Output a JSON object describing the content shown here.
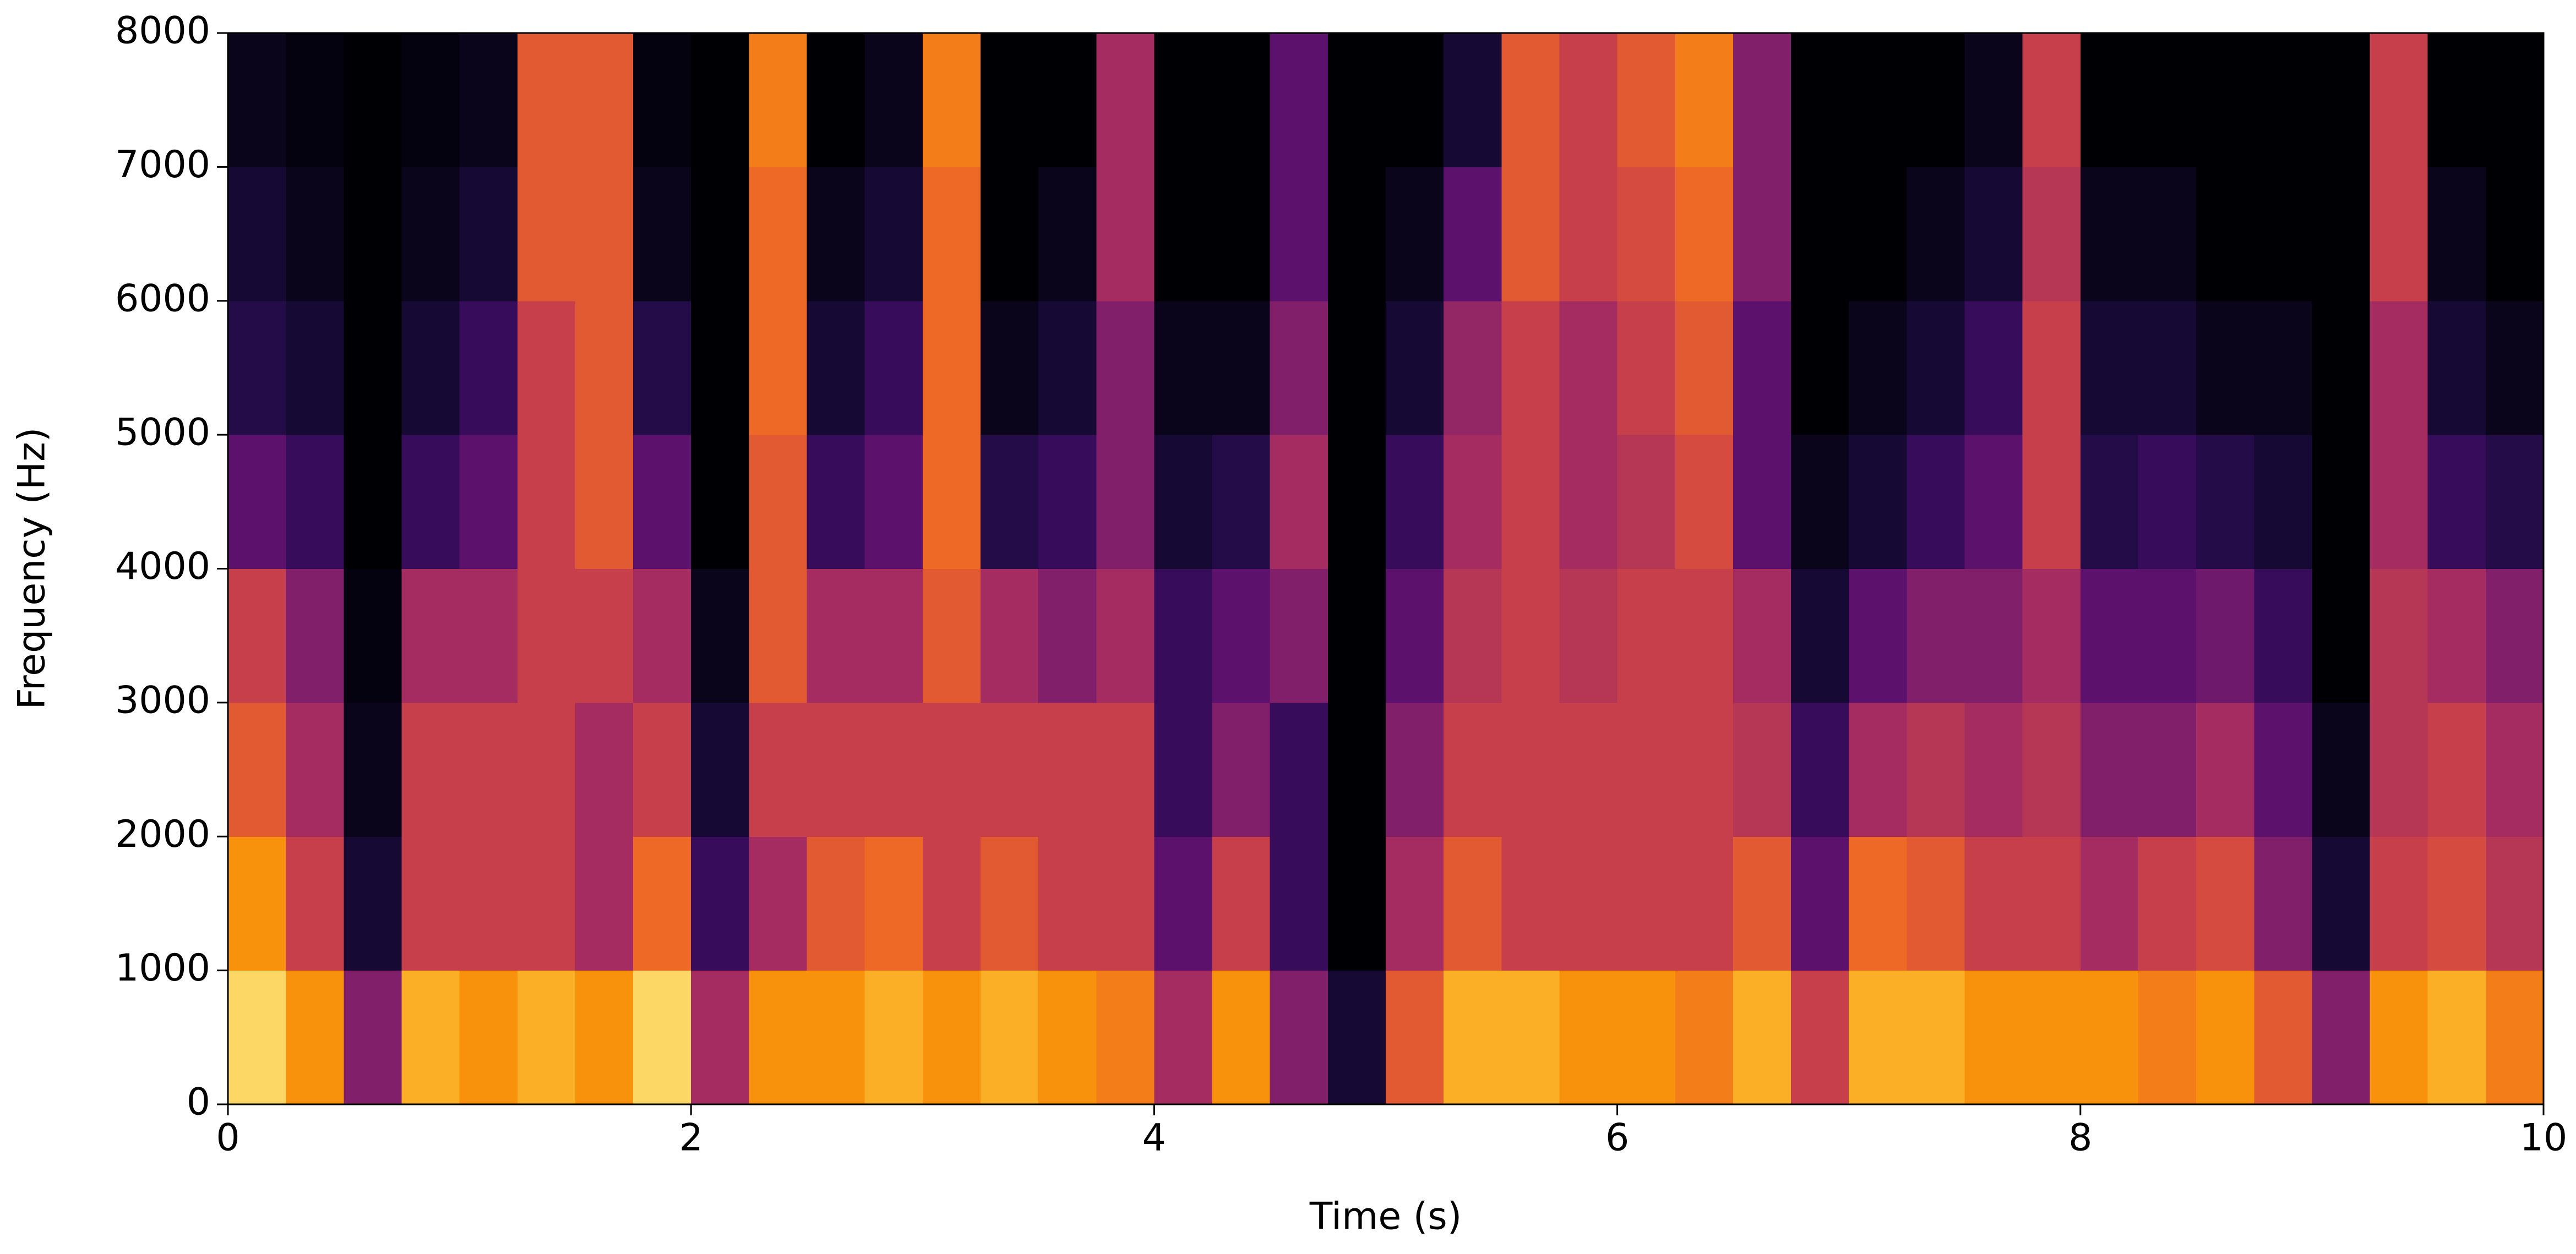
{
  "chart_data": {
    "type": "spectrogram",
    "colormap": "inferno",
    "xlabel": "Time (s)",
    "ylabel": "Frequency (Hz)",
    "xlim": [
      0,
      10
    ],
    "ylim": [
      0,
      8000
    ],
    "xticks": [
      0,
      2,
      4,
      6,
      8,
      10
    ],
    "yticks": [
      0,
      1000,
      2000,
      3000,
      4000,
      5000,
      6000,
      7000,
      8000
    ],
    "xbins": [
      0,
      0.25,
      0.5,
      0.75,
      1,
      1.25,
      1.5,
      1.75,
      2,
      2.25,
      2.5,
      2.75,
      3,
      3.25,
      3.5,
      3.75,
      4,
      4.25,
      4.5,
      4.75,
      5,
      5.25,
      5.5,
      5.75,
      6,
      6.25,
      6.5,
      6.75,
      7,
      7.25,
      7.5,
      7.75,
      8,
      8.25,
      8.5,
      8.75,
      9,
      9.25,
      9.5,
      9.75,
      10
    ],
    "ybins": [
      0,
      1000,
      2000,
      3000,
      4000,
      5000,
      6000,
      7000,
      8000
    ],
    "values": [
      [
        0.95,
        0.85,
        0.7,
        0.6,
        0.3,
        0.15,
        0.1,
        0.05
      ],
      [
        0.85,
        0.6,
        0.5,
        0.4,
        0.2,
        0.1,
        0.05,
        0.02
      ],
      [
        0.4,
        0.1,
        0.05,
        0.02,
        0,
        0,
        0,
        0
      ],
      [
        0.9,
        0.6,
        0.6,
        0.5,
        0.2,
        0.1,
        0.05,
        0.02
      ],
      [
        0.85,
        0.6,
        0.6,
        0.5,
        0.3,
        0.2,
        0.1,
        0.05
      ],
      [
        0.9,
        0.6,
        0.6,
        0.6,
        0.6,
        0.6,
        0.7,
        0.7
      ],
      [
        0.85,
        0.5,
        0.5,
        0.6,
        0.7,
        0.7,
        0.7,
        0.7
      ],
      [
        0.95,
        0.75,
        0.6,
        0.5,
        0.3,
        0.15,
        0.05,
        0.02
      ],
      [
        0.5,
        0.2,
        0.1,
        0.05,
        0,
        0,
        0,
        0
      ],
      [
        0.85,
        0.5,
        0.6,
        0.7,
        0.7,
        0.75,
        0.75,
        0.8
      ],
      [
        0.85,
        0.7,
        0.6,
        0.5,
        0.2,
        0.1,
        0.05,
        0
      ],
      [
        0.9,
        0.75,
        0.6,
        0.5,
        0.3,
        0.2,
        0.1,
        0.05
      ],
      [
        0.85,
        0.6,
        0.6,
        0.7,
        0.75,
        0.75,
        0.75,
        0.8
      ],
      [
        0.9,
        0.7,
        0.6,
        0.5,
        0.15,
        0.05,
        0,
        0
      ],
      [
        0.85,
        0.6,
        0.6,
        0.4,
        0.2,
        0.1,
        0.05,
        0
      ],
      [
        0.8,
        0.6,
        0.6,
        0.5,
        0.4,
        0.4,
        0.5,
        0.5
      ],
      [
        0.5,
        0.3,
        0.2,
        0.2,
        0.1,
        0.05,
        0,
        0
      ],
      [
        0.85,
        0.6,
        0.4,
        0.3,
        0.15,
        0.05,
        0,
        0
      ],
      [
        0.4,
        0.2,
        0.2,
        0.4,
        0.5,
        0.4,
        0.3,
        0.3
      ],
      [
        0.1,
        0,
        0,
        0,
        0,
        0,
        0,
        0
      ],
      [
        0.7,
        0.5,
        0.4,
        0.3,
        0.2,
        0.1,
        0.05,
        0
      ],
      [
        0.9,
        0.7,
        0.6,
        0.55,
        0.5,
        0.45,
        0.3,
        0.1
      ],
      [
        0.9,
        0.6,
        0.6,
        0.6,
        0.6,
        0.6,
        0.7,
        0.7
      ],
      [
        0.85,
        0.6,
        0.6,
        0.55,
        0.5,
        0.5,
        0.6,
        0.6
      ],
      [
        0.85,
        0.6,
        0.6,
        0.6,
        0.55,
        0.6,
        0.65,
        0.7
      ],
      [
        0.8,
        0.6,
        0.6,
        0.6,
        0.65,
        0.7,
        0.75,
        0.8
      ],
      [
        0.9,
        0.7,
        0.55,
        0.5,
        0.3,
        0.3,
        0.4,
        0.4
      ],
      [
        0.6,
        0.3,
        0.2,
        0.1,
        0.05,
        0,
        0,
        0
      ],
      [
        0.9,
        0.75,
        0.5,
        0.3,
        0.1,
        0.05,
        0,
        0
      ],
      [
        0.9,
        0.7,
        0.55,
        0.4,
        0.2,
        0.1,
        0.05,
        0
      ],
      [
        0.85,
        0.6,
        0.5,
        0.4,
        0.3,
        0.2,
        0.1,
        0.05
      ],
      [
        0.85,
        0.6,
        0.55,
        0.5,
        0.6,
        0.6,
        0.55,
        0.6
      ],
      [
        0.85,
        0.5,
        0.4,
        0.3,
        0.15,
        0.1,
        0.05,
        0
      ],
      [
        0.8,
        0.6,
        0.4,
        0.3,
        0.2,
        0.1,
        0.05,
        0
      ],
      [
        0.85,
        0.65,
        0.5,
        0.35,
        0.15,
        0.05,
        0,
        0
      ],
      [
        0.7,
        0.4,
        0.3,
        0.2,
        0.1,
        0.05,
        0,
        0
      ],
      [
        0.4,
        0.1,
        0.05,
        0,
        0,
        0,
        0,
        0
      ],
      [
        0.85,
        0.6,
        0.55,
        0.55,
        0.5,
        0.5,
        0.6,
        0.6
      ],
      [
        0.9,
        0.65,
        0.6,
        0.5,
        0.2,
        0.1,
        0.05,
        0
      ],
      [
        0.8,
        0.55,
        0.5,
        0.4,
        0.15,
        0.05,
        0,
        0
      ]
    ]
  }
}
